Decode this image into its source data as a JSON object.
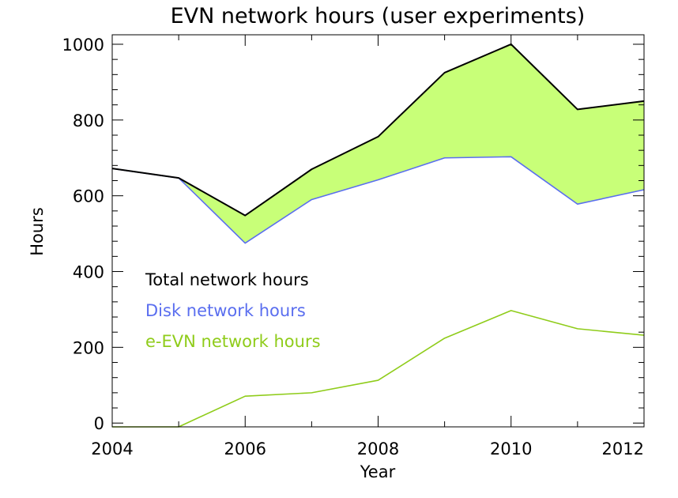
{
  "chart_data": {
    "type": "line",
    "title": "EVN network hours (user experiments)",
    "xlabel": "Year",
    "ylabel": "Hours",
    "x": [
      2004,
      2005,
      2006,
      2007,
      2008,
      2009,
      2010,
      2011,
      2012
    ],
    "xlim": [
      2004,
      2012
    ],
    "ylim": [
      -10,
      1025
    ],
    "xticks": [
      2004,
      2006,
      2008,
      2010,
      2012
    ],
    "xtick_labels": [
      "2004",
      "2006",
      "2008",
      "2010",
      "2012"
    ],
    "yticks": [
      0,
      200,
      400,
      600,
      800,
      1000
    ],
    "ytick_labels": [
      "0",
      "200",
      "400",
      "600",
      "800",
      "1000"
    ],
    "fill_between": {
      "upper": "Total network hours",
      "lower": "Disk network hours",
      "color": "#c8ff78"
    },
    "series": [
      {
        "name": "Total network hours",
        "color": "#000000",
        "values": [
          672,
          647,
          548,
          670,
          756,
          925,
          1000,
          828,
          850
        ]
      },
      {
        "name": "Disk network hours",
        "color": "#5a6eef",
        "values": [
          672,
          647,
          475,
          590,
          642,
          700,
          703,
          578,
          616
        ]
      },
      {
        "name": "e-EVN network hours",
        "color": "#8fcc1a",
        "values": [
          -10,
          -10,
          71,
          80,
          113,
          224,
          297,
          249,
          232
        ]
      }
    ],
    "legend_placement": "middle-left"
  }
}
